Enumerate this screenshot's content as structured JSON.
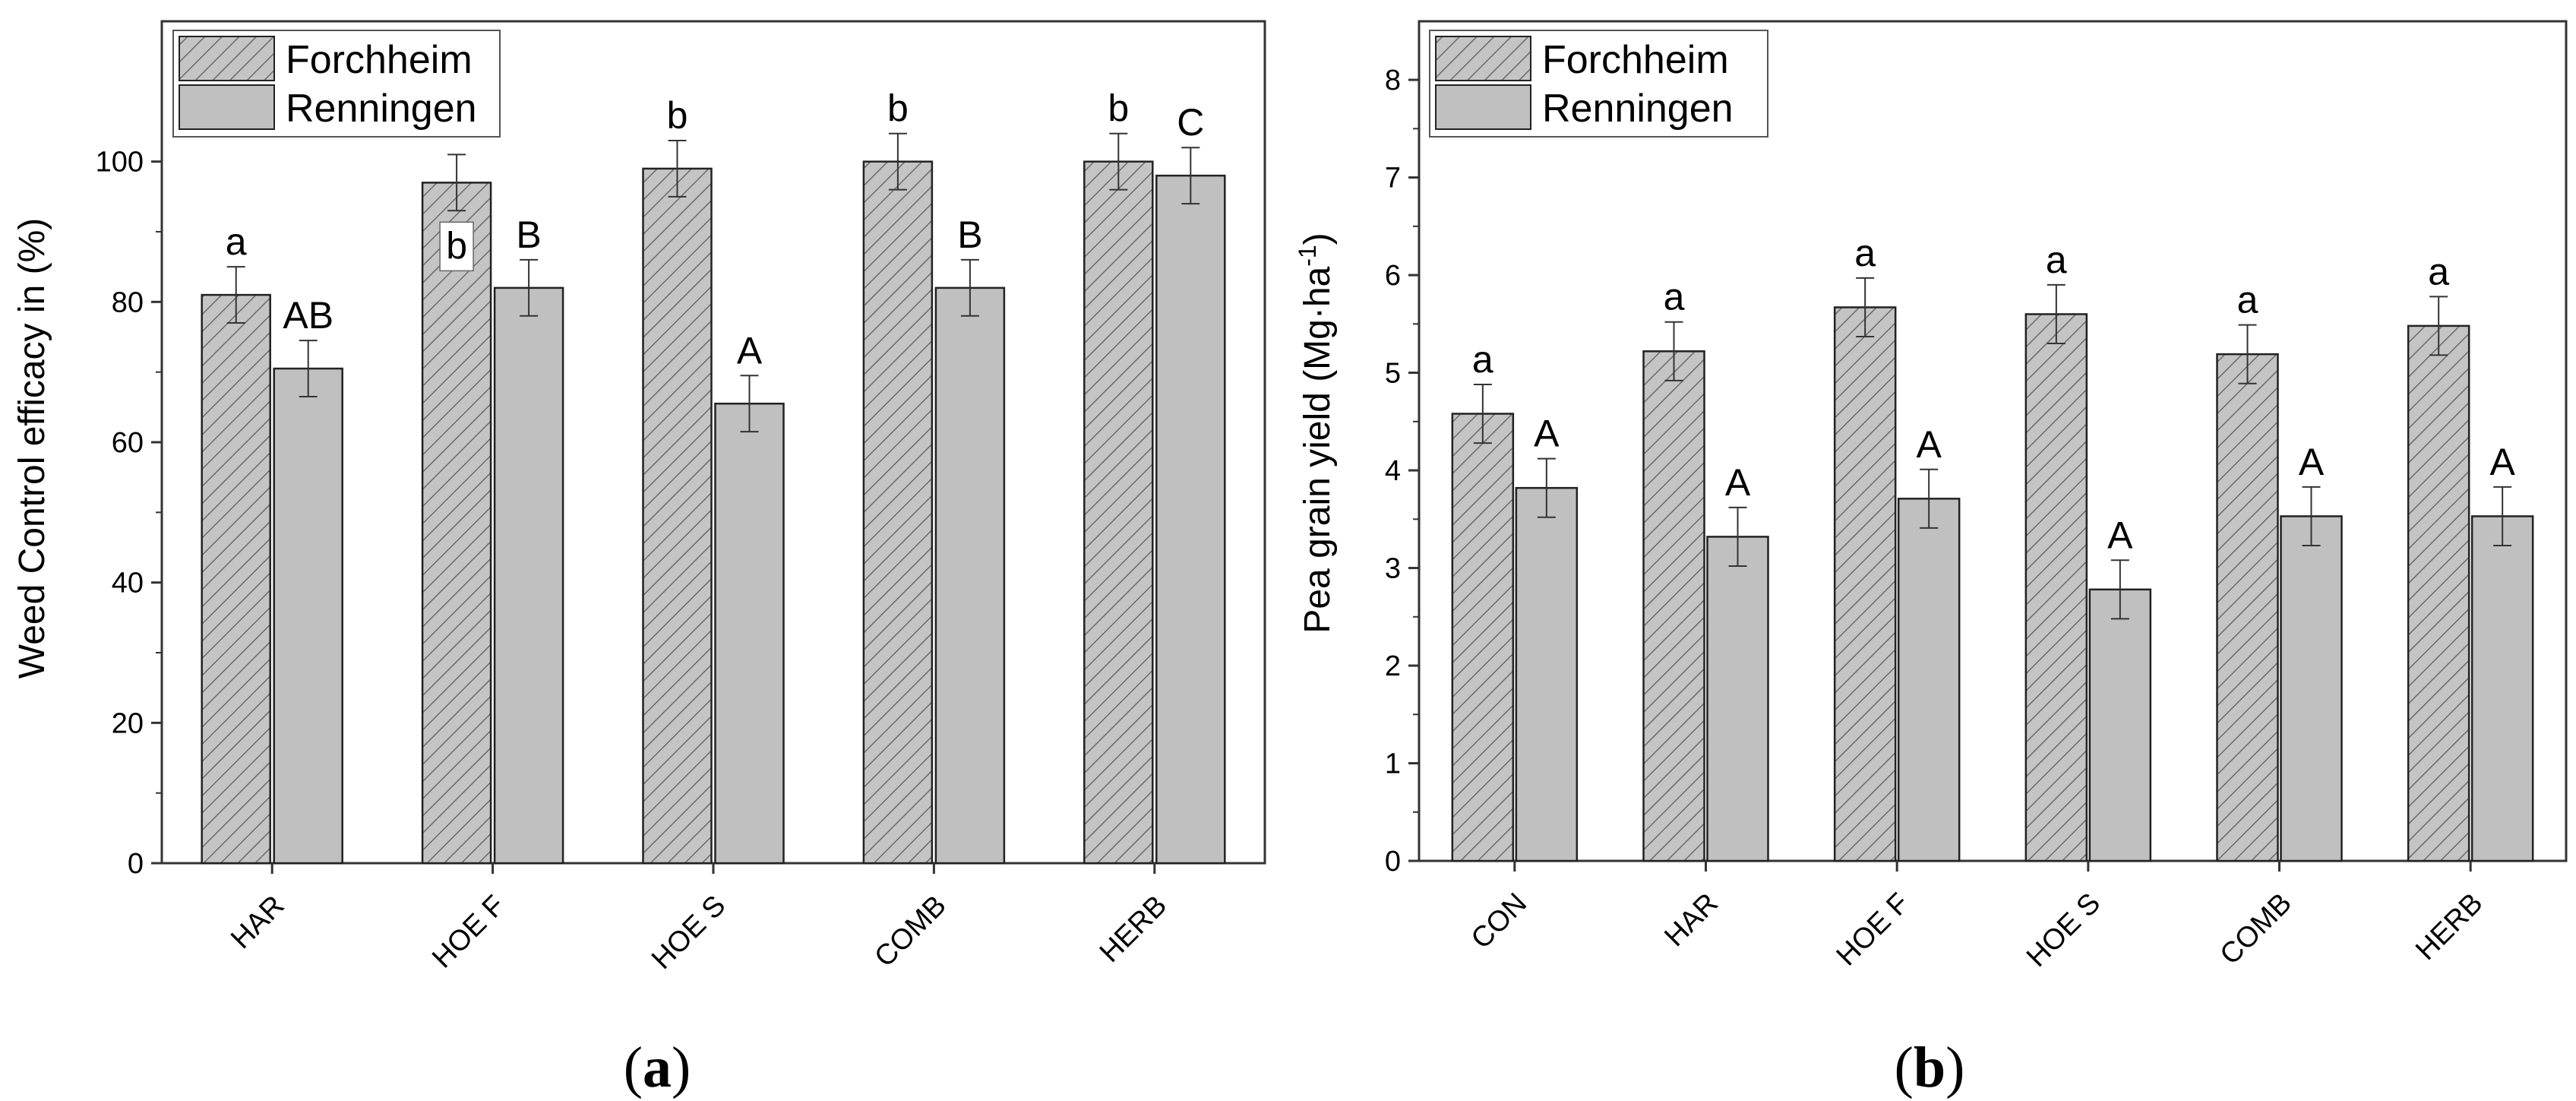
{
  "chart_data": [
    {
      "type": "bar",
      "panel_label_parts": [
        "(",
        "a",
        ")"
      ],
      "ylabel": "Weed Control efficacy in (%)",
      "xlabel": "",
      "ylim": [
        0,
        120
      ],
      "yticks": [
        0,
        20,
        40,
        60,
        80,
        100
      ],
      "categories": [
        "HAR",
        "HOE F",
        "HOE S",
        "COMB",
        "HERB"
      ],
      "series": [
        {
          "name": "Forchheim",
          "pattern": "hatched",
          "values": [
            81,
            97,
            99,
            100,
            100
          ],
          "errors": [
            4,
            4,
            4,
            4,
            4
          ],
          "letters": [
            "a",
            "b",
            "b",
            "b",
            "b"
          ]
        },
        {
          "name": "Renningen",
          "pattern": "solid",
          "values": [
            70.5,
            82,
            65.5,
            82,
            98
          ],
          "errors": [
            4,
            4,
            4,
            4,
            4
          ],
          "letters": [
            "AB",
            "B",
            "A",
            "B",
            "C"
          ]
        }
      ],
      "legend_position": "top-left",
      "boxed_letter": "b"
    },
    {
      "type": "bar",
      "panel_label_parts": [
        "(",
        "b",
        ")"
      ],
      "ylabel": "Pea grain yield (Mg·ha",
      "ylabel_superscript": "-1",
      "ylabel_suffix": ")",
      "xlabel": "",
      "ylim": [
        0,
        8.6
      ],
      "yticks": [
        0,
        1,
        2,
        3,
        4,
        5,
        6,
        7,
        8
      ],
      "categories": [
        "CON",
        "HAR",
        "HOE F",
        "HOE S",
        "COMB",
        "HERB"
      ],
      "series": [
        {
          "name": "Forchheim",
          "pattern": "hatched",
          "values": [
            4.58,
            5.22,
            5.67,
            5.6,
            5.19,
            5.48
          ],
          "errors": [
            0.3,
            0.3,
            0.3,
            0.3,
            0.3,
            0.3
          ],
          "letters": [
            "a",
            "a",
            "a",
            "a",
            "a",
            "a"
          ]
        },
        {
          "name": "Renningen",
          "pattern": "solid",
          "values": [
            3.82,
            3.32,
            3.71,
            2.78,
            3.53,
            3.53
          ],
          "errors": [
            0.3,
            0.3,
            0.3,
            0.3,
            0.3,
            0.3
          ],
          "letters": [
            "A",
            "A",
            "A",
            "A",
            "A",
            "A"
          ]
        }
      ],
      "legend_position": "top-left"
    }
  ],
  "colors": {
    "bar_fill": "#c0c0c0",
    "bar_stroke": "#222222",
    "hatch": "#6a6a6a",
    "axis": "#333333"
  }
}
